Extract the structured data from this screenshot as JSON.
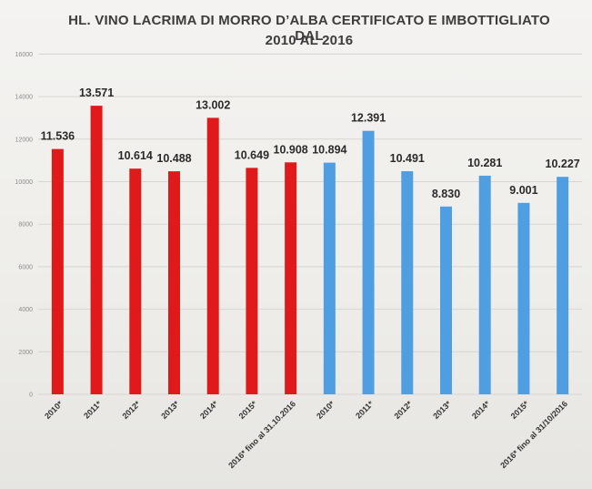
{
  "chart_data": {
    "type": "bar",
    "title_line1": "HL. VINO LACRIMA DI MORRO D’ALBA CERTIFICATO E IMBOTTIGLIATO DAL",
    "title_line2": "2010 AL 2016",
    "ylim": [
      0,
      16000
    ],
    "yticks": [
      "0",
      "2000",
      "4000",
      "6000",
      "8000",
      "10000",
      "12000",
      "14000",
      "16000"
    ],
    "grid": true,
    "colors": {
      "certificato": "#e0191b",
      "imbottigliato": "#4f9ee2"
    },
    "bars": [
      {
        "category": "2010*",
        "value": 11536,
        "label": "11.536",
        "group": "certificato"
      },
      {
        "category": "2011*",
        "value": 13571,
        "label": "13.571",
        "group": "certificato"
      },
      {
        "category": "2012*",
        "value": 10614,
        "label": "10.614",
        "group": "certificato"
      },
      {
        "category": "2013*",
        "value": 10488,
        "label": "10.488",
        "group": "certificato"
      },
      {
        "category": "2014*",
        "value": 13002,
        "label": "13.002",
        "group": "certificato"
      },
      {
        "category": "2015*",
        "value": 10649,
        "label": "10.649",
        "group": "certificato"
      },
      {
        "category": "2016* fino al 31.10.2016",
        "value": 10908,
        "label": "10.908",
        "group": "certificato"
      },
      {
        "category": "2010*",
        "value": 10894,
        "label": "10.894",
        "group": "imbottigliato"
      },
      {
        "category": "2011*",
        "value": 12391,
        "label": "12.391",
        "group": "imbottigliato"
      },
      {
        "category": "2012*",
        "value": 10491,
        "label": "10.491",
        "group": "imbottigliato"
      },
      {
        "category": "2013*",
        "value": 8830,
        "label": "8.830",
        "group": "imbottigliato"
      },
      {
        "category": "2014*",
        "value": 10281,
        "label": "10.281",
        "group": "imbottigliato"
      },
      {
        "category": "2015*",
        "value": 9001,
        "label": "9.001",
        "group": "imbottigliato"
      },
      {
        "category": "2016* fino al 31/10/2016",
        "value": 10227,
        "label": "10.227",
        "group": "imbottigliato"
      }
    ]
  }
}
